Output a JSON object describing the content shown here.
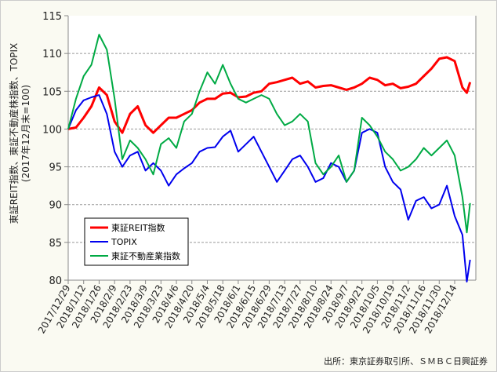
{
  "chart_data": {
    "type": "line",
    "ylabel": "東証REIT指数、東証不動産株指数、TOPIX",
    "ylabel_sub": "(2017年12月末=100)",
    "ylim": [
      80,
      115
    ],
    "yticks": [
      80,
      85,
      90,
      95,
      100,
      105,
      110,
      115
    ],
    "grid": true,
    "legend_placement": "bottom-left",
    "xticks": [
      "2017/12/29",
      "2018/1/12",
      "2018/1/26",
      "2018/2/9",
      "2018/2/23",
      "2018/3/9",
      "2018/3/23",
      "2018/4/6",
      "2018/4/20",
      "2018/5/4",
      "2018/5/18",
      "2018/6/1",
      "2018/6/15",
      "2018/6/29",
      "2018/7/13",
      "2018/7/27",
      "2018/8/10",
      "2018/8/24",
      "2018/9/7",
      "2018/9/21",
      "2018/10/5",
      "2018/10/19",
      "2018/11/2",
      "2018/11/16",
      "2018/11/30",
      "2018/12/14"
    ],
    "x": [
      "2017/12/29",
      "2018/1/5",
      "2018/1/12",
      "2018/1/19",
      "2018/1/26",
      "2018/2/2",
      "2018/2/9",
      "2018/2/16",
      "2018/2/23",
      "2018/3/2",
      "2018/3/9",
      "2018/3/16",
      "2018/3/23",
      "2018/3/30",
      "2018/4/6",
      "2018/4/13",
      "2018/4/20",
      "2018/4/27",
      "2018/5/4",
      "2018/5/11",
      "2018/5/18",
      "2018/5/25",
      "2018/6/1",
      "2018/6/8",
      "2018/6/15",
      "2018/6/22",
      "2018/6/29",
      "2018/7/6",
      "2018/7/13",
      "2018/7/20",
      "2018/7/27",
      "2018/8/3",
      "2018/8/10",
      "2018/8/17",
      "2018/8/24",
      "2018/8/31",
      "2018/9/7",
      "2018/9/14",
      "2018/9/21",
      "2018/9/28",
      "2018/10/5",
      "2018/10/12",
      "2018/10/19",
      "2018/10/26",
      "2018/11/2",
      "2018/11/9",
      "2018/11/16",
      "2018/11/23",
      "2018/11/30",
      "2018/12/7",
      "2018/12/14",
      "2018/12/21",
      "2018/12/25",
      "2018/12/28"
    ],
    "series": [
      {
        "name": "東証REIT指数",
        "color": "#ff0000",
        "values": [
          100,
          100.2,
          101.5,
          103,
          105.5,
          104.5,
          101,
          99.5,
          102,
          103,
          100.5,
          99.5,
          100.5,
          101.5,
          101.5,
          102,
          102.5,
          103.5,
          104,
          104,
          104.7,
          104.8,
          104.2,
          104.3,
          104.8,
          105,
          106,
          106.2,
          106.5,
          106.8,
          106,
          106.3,
          105.5,
          105.7,
          105.8,
          105.5,
          105.2,
          105.5,
          106,
          106.8,
          106.5,
          105.8,
          106,
          105.4,
          105.6,
          106,
          107,
          108,
          109.3,
          109.5,
          109,
          105.5,
          104.8,
          106.2
        ]
      },
      {
        "name": "TOPIX",
        "color": "#0000ee",
        "values": [
          100,
          102.5,
          103.8,
          104.2,
          104.5,
          102,
          97,
          95,
          96.5,
          97,
          94.5,
          95.5,
          94.5,
          92.5,
          94,
          94.8,
          95.5,
          97,
          97.5,
          97.6,
          99,
          99.8,
          97,
          98,
          99,
          97,
          95,
          93,
          94.5,
          96,
          96.5,
          95,
          93,
          93.5,
          95.5,
          95,
          93,
          94.5,
          99.5,
          100,
          99.5,
          95,
          93,
          92,
          88,
          90.5,
          91,
          89.5,
          90,
          92.5,
          88.5,
          86,
          79.8,
          82.7
        ]
      },
      {
        "name": "東証不動産業指数",
        "color": "#00aa44",
        "values": [
          100,
          104,
          107,
          108.5,
          112.5,
          110.5,
          104,
          96,
          98.5,
          97.5,
          96,
          94,
          98,
          98.8,
          97.5,
          101,
          102,
          105,
          107.5,
          106,
          108.5,
          106,
          104,
          103.5,
          104,
          104.5,
          104,
          102,
          100.5,
          101,
          102,
          101,
          95.5,
          94,
          95,
          96.5,
          93,
          94.5,
          101.5,
          100.5,
          99,
          97,
          96,
          94.5,
          95,
          96,
          97.5,
          96.5,
          97.5,
          98.5,
          96.5,
          91,
          86.3,
          90.2
        ]
      }
    ]
  },
  "source_note": "出所：東京証券取引所、ＳＭＢＣ日興証券"
}
